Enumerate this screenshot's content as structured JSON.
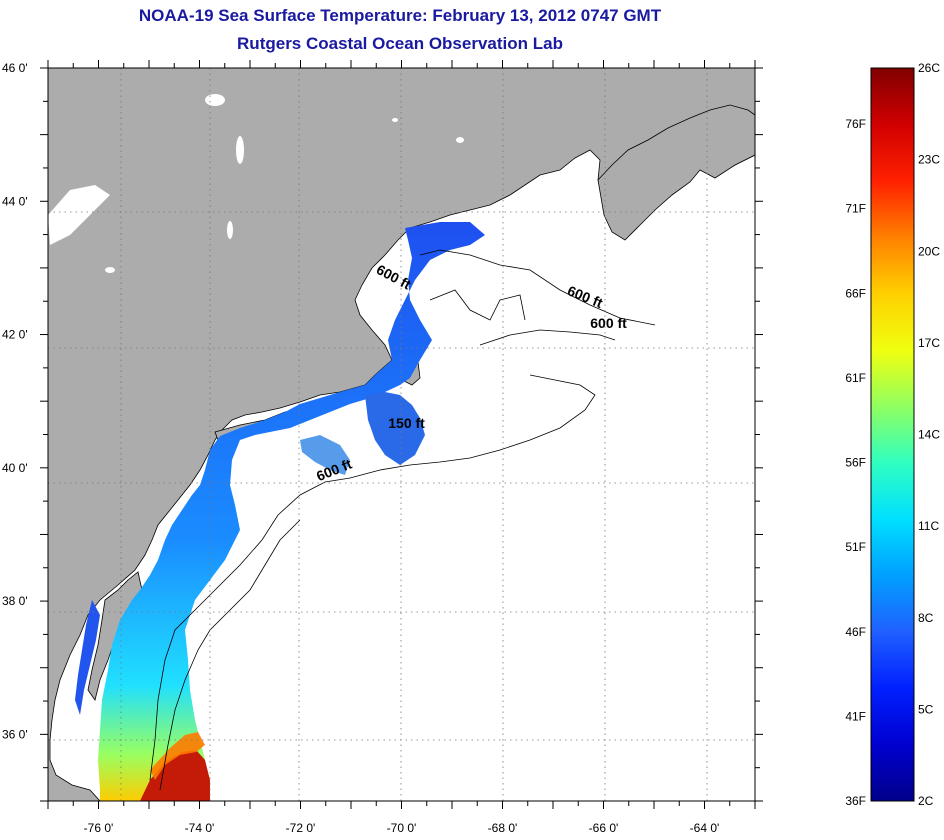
{
  "title": {
    "line1": "NOAA-19 Sea Surface Temperature:  February 13, 2012 0747 GMT",
    "line2": "Rutgers Coastal Ocean Observation Lab"
  },
  "map": {
    "lon_range": [
      -77,
      -63
    ],
    "lat_range": [
      35,
      46
    ],
    "lon_ticks": [
      "-76 0'",
      "-74 0'",
      "-72 0'",
      "-70 0'",
      "-68 0'",
      "-66 0'",
      "-64 0'"
    ],
    "lat_ticks": [
      "46 0'",
      "44 0'",
      "42 0'",
      "40 0'",
      "38 0'",
      "36 0'"
    ],
    "land_color": "#acacac",
    "ocean_color": "#ffffff",
    "contour_labels": [
      {
        "text": "600 ft",
        "lon": -70.2,
        "lat": 42.8,
        "angle": 28
      },
      {
        "text": "600 ft",
        "lon": -66.4,
        "lat": 42.5,
        "angle": 22
      },
      {
        "text": "600 ft",
        "lon": -65.9,
        "lat": 42.1,
        "angle": 0
      },
      {
        "text": "150 ft",
        "lon": -69.9,
        "lat": 40.6,
        "angle": 0
      },
      {
        "text": "600 ft",
        "lon": -71.3,
        "lat": 39.9,
        "angle": -22
      }
    ]
  },
  "colorbar": {
    "right_labels": [
      "26C",
      "23C",
      "20C",
      "17C",
      "14C",
      "11C",
      "8C",
      "5C",
      "2C"
    ],
    "left_labels": [
      "76F",
      "71F",
      "66F",
      "61F",
      "56F",
      "51F",
      "46F",
      "41F",
      "36F"
    ],
    "stops": [
      "#800000",
      "#d00000",
      "#ff2000",
      "#ff8000",
      "#ffd000",
      "#f0ff10",
      "#90ff60",
      "#30ffc0",
      "#00e0ff",
      "#00a0ff",
      "#2060ff",
      "#0020ff",
      "#0000d0",
      "#00008a"
    ]
  }
}
